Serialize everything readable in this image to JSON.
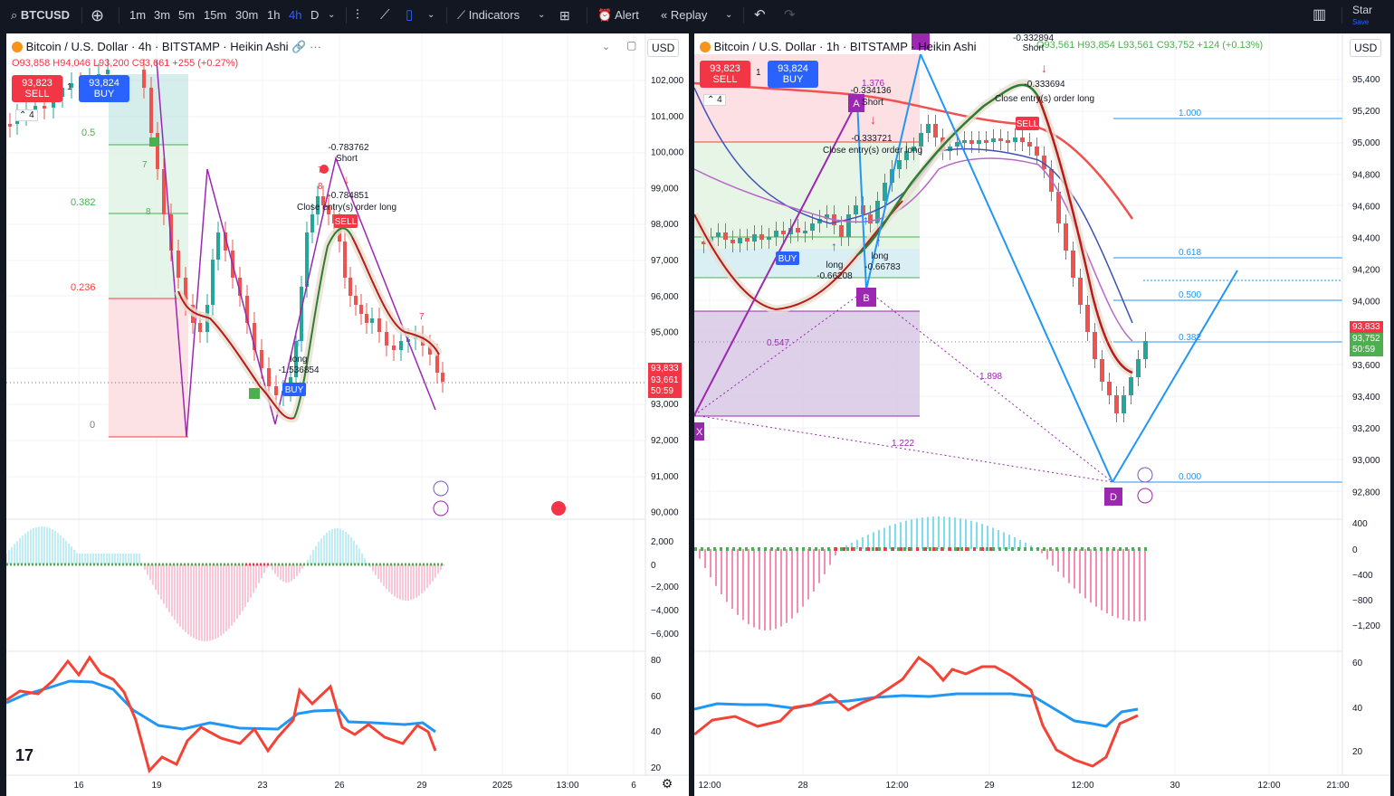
{
  "toolbar": {
    "symbol": "BTCUSD",
    "intervals": [
      "1m",
      "3m",
      "5m",
      "15m",
      "30m",
      "1h",
      "4h",
      "D"
    ],
    "active_interval": "4h",
    "indicators": "Indicators",
    "alert": "Alert",
    "replay": "Replay",
    "star": "Star",
    "save": "Save",
    "accent": "#2962ff"
  },
  "left": {
    "legend": "Bitcoin / U.S. Dollar · 4h · BITSTAMP · Heikin Ashi",
    "ohlc": {
      "o": "O93,858",
      "h": "H94,046",
      "l": "L93,200",
      "c": "C93,661",
      "chg": "+255 (+0.27%)"
    },
    "sell": {
      "price": "93,823",
      "label": "SELL"
    },
    "buy": {
      "price": "93,824",
      "label": "BUY"
    },
    "qty": "1",
    "layers": "4",
    "unit": "USD",
    "price_axis": [
      "102,000",
      "101,000",
      "100,000",
      "99,000",
      "98,000",
      "97,000",
      "96,000",
      "95,000",
      "94,000",
      "93,000",
      "92,000",
      "91,000",
      "90,000"
    ],
    "last_price": "93,833",
    "cur_price": "93,661",
    "countdown": "50:59",
    "macd_axis": [
      "2,000",
      "0",
      "−2,000",
      "−4,000",
      "−6,000"
    ],
    "rsi_axis": [
      "80",
      "60",
      "40",
      "20"
    ],
    "time_axis": [
      "16",
      "19",
      "23",
      "26",
      "29",
      "2025",
      "13:00",
      "6"
    ],
    "fib": [
      "0.5",
      "0.382",
      "0.236",
      "0"
    ],
    "ann": {
      "short_val": "-0.783762",
      "short": "Short",
      "close_val": "-0.784851",
      "close": "Close entry(s) order long",
      "long": "long",
      "long_val": "-1.536854",
      "buy": "BUY",
      "sell": "SELL",
      "n7a": "7",
      "n8a": "8",
      "n7b": "7",
      "n8b": "8",
      "n7c": "7"
    }
  },
  "right": {
    "legend": "Bitcoin / U.S. Dollar · 1h · BITSTAMP · Heikin Ashi",
    "ohlc": {
      "o": "O93,561",
      "h": "H93,854",
      "l": "L93,561",
      "c": "C93,752",
      "chg": "+124 (+0.13%)"
    },
    "sell": {
      "price": "93,823",
      "label": "SELL"
    },
    "buy": {
      "price": "93,824",
      "label": "BUY"
    },
    "qty": "1",
    "layers": "4",
    "unit": "USD",
    "price_axis": [
      "95,400",
      "95,200",
      "95,000",
      "94,800",
      "94,600",
      "94,400",
      "94,200",
      "94,000",
      "93,800",
      "93,600",
      "93,400",
      "93,200",
      "93,000",
      "92,800"
    ],
    "last_price": "93,833",
    "cur_price": "93,752",
    "countdown": "50:59",
    "macd_axis": [
      "400",
      "0",
      "−400",
      "−800",
      "−1,200"
    ],
    "rsi_axis": [
      "60",
      "40",
      "20"
    ],
    "time_axis": [
      "12:00",
      "28",
      "12:00",
      "29",
      "12:00",
      "30",
      "12:00",
      "21:00"
    ],
    "fib": [
      "1.000",
      "0.618",
      "0.500",
      "0.382",
      "0.000"
    ],
    "pat": {
      "a": "A",
      "b": "B",
      "d": "D",
      "x": "X",
      "r1": "1.376",
      "r2": "0.547",
      "r3": "1.898",
      "r4": "1.222"
    },
    "ann": {
      "v1": "-0.334136",
      "short1": "Short",
      "v2": "-0.333721",
      "close1": "Close entry(s) order long",
      "v3": "-0.332894",
      "short2": "Short",
      "v4": "-0.333694",
      "close2": "Close entry(s) order long",
      "long1": "long",
      "lv1": "-0.66208",
      "long2": "long",
      "lv2": "-0.66783",
      "buy": "BUY",
      "sell": "SELL"
    }
  }
}
